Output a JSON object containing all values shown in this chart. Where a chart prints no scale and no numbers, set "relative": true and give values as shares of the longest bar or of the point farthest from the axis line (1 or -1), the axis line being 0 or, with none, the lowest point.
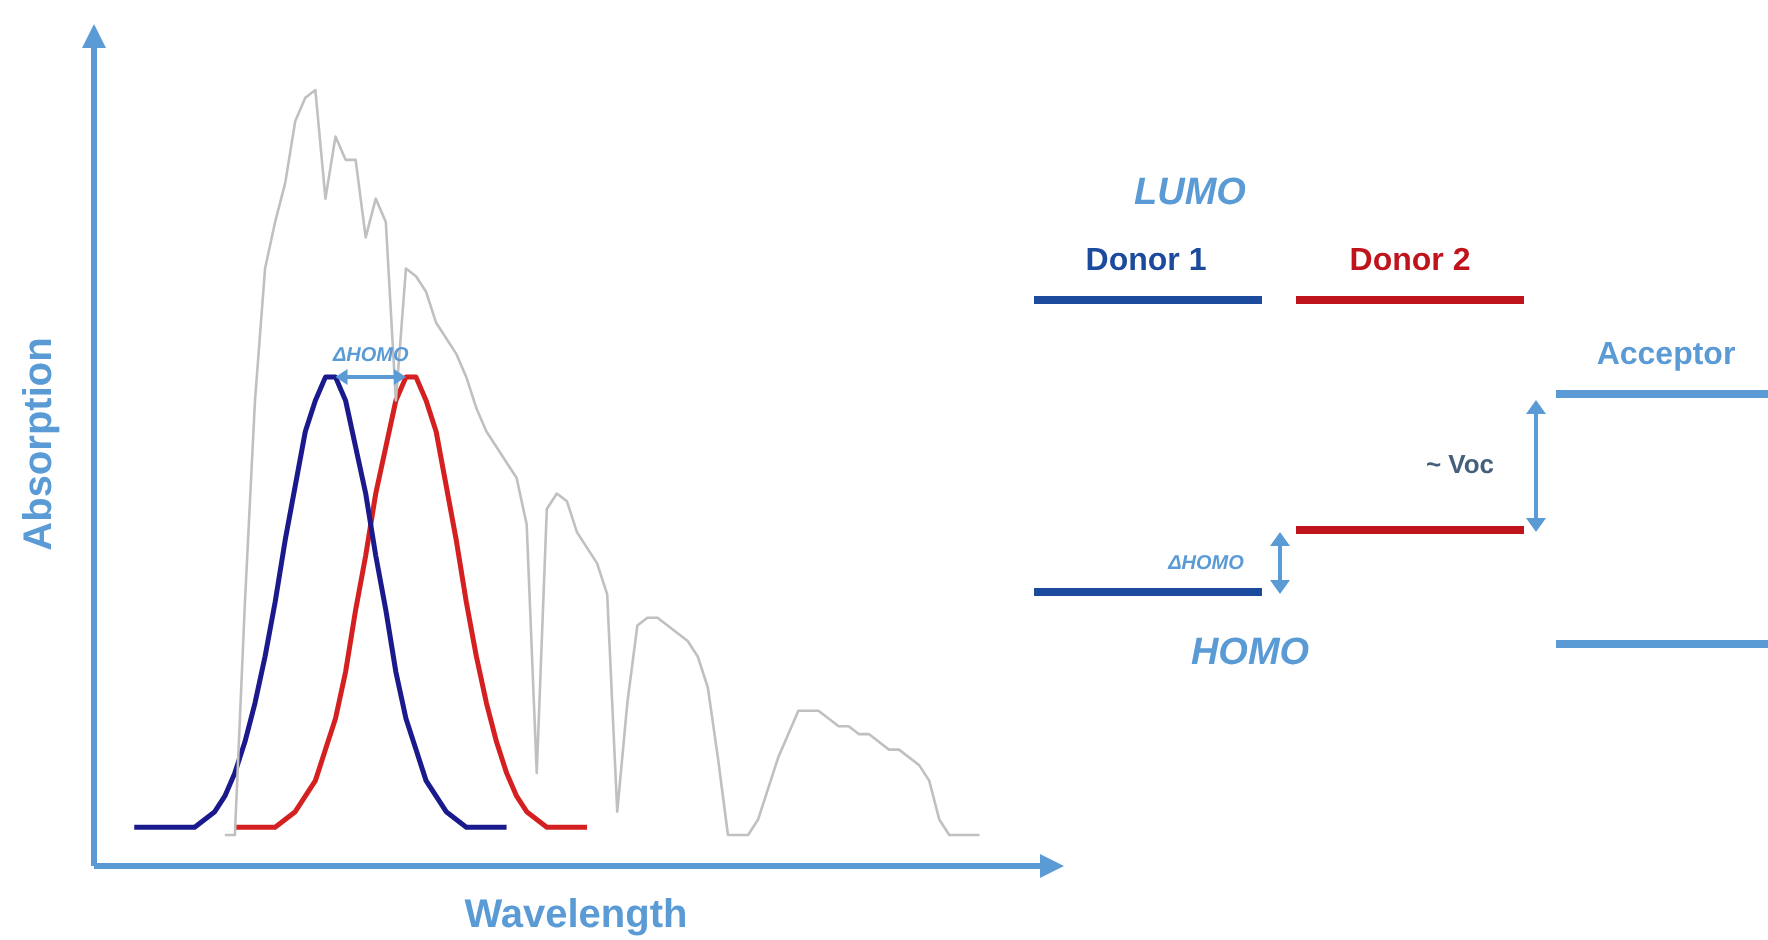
{
  "chart_data": [
    {
      "type": "line",
      "xlabel": "Wavelength",
      "ylabel": "Absorption",
      "relative": true,
      "annotations": [
        "ΔHOMO"
      ],
      "categories": [
        null,
        null,
        null,
        null,
        null,
        null,
        null,
        null,
        null,
        null,
        null,
        null,
        null,
        null,
        null,
        null,
        null,
        null,
        null,
        null,
        null,
        null,
        null,
        null,
        null,
        null,
        null,
        null,
        null,
        null,
        null,
        null,
        null,
        null,
        null,
        null,
        null,
        null,
        null,
        null,
        null,
        null,
        null,
        null,
        null,
        null,
        null,
        null,
        null,
        null,
        null,
        null,
        null,
        null,
        null,
        null,
        null,
        null,
        null,
        null,
        null,
        null,
        null,
        null,
        null,
        null,
        null,
        null,
        null,
        null,
        null,
        null,
        null,
        null,
        null,
        null,
        null,
        null,
        null,
        null,
        null,
        null,
        null,
        null,
        null,
        null,
        null,
        null,
        null,
        null,
        null,
        null,
        null,
        null,
        null,
        null,
        null
      ],
      "series": [
        {
          "color": "#c0c0c0",
          "values": [
            null,
            null,
            null,
            null,
            null,
            null,
            null,
            null,
            null,
            null,
            null,
            null,
            null,
            0.04,
            0.04,
            0.34,
            0.6,
            0.77,
            0.83,
            0.88,
            0.96,
            0.99,
            1,
            0.86,
            0.94,
            0.91,
            0.91,
            0.81,
            0.86,
            0.83,
            0.6,
            0.77,
            0.76,
            0.74,
            0.7,
            0.68,
            0.66,
            0.63,
            0.59,
            0.56,
            0.54,
            0.52,
            0.5,
            0.44,
            0.12,
            0.46,
            0.48,
            0.47,
            0.43,
            0.41,
            0.39,
            0.35,
            0.07,
            0.21,
            0.31,
            0.32,
            0.32,
            0.31,
            0.3,
            0.29,
            0.27,
            0.23,
            0.14,
            0.04,
            0.04,
            0.04,
            0.06,
            0.1,
            0.14,
            0.17,
            0.2,
            0.2,
            0.2,
            0.19,
            0.18,
            0.18,
            0.17,
            0.17,
            0.16,
            0.15,
            0.15,
            0.14,
            0.13,
            0.11,
            0.06,
            0.04,
            0.04,
            0.04,
            0.04,
            null,
            null,
            null,
            null,
            null,
            null,
            null,
            null
          ]
        },
        {
          "color": "#1a1a8c",
          "values": [
            null,
            null,
            null,
            null,
            0.05,
            0.05,
            0.05,
            0.05,
            0.05,
            0.05,
            0.05,
            0.06,
            0.07,
            0.09,
            0.12,
            0.16,
            0.21,
            0.27,
            0.34,
            0.42,
            0.49,
            0.56,
            0.6,
            0.63,
            0.63,
            0.6,
            0.54,
            0.48,
            0.4,
            0.33,
            0.25,
            0.19,
            0.15,
            0.11,
            0.09,
            0.07,
            0.06,
            0.05,
            0.05,
            0.05,
            0.05,
            0.05,
            null,
            null,
            null,
            null,
            null,
            null,
            null,
            null,
            null,
            null,
            null,
            null,
            null,
            null,
            null,
            null,
            null,
            null,
            null,
            null,
            null,
            null,
            null,
            null,
            null,
            null,
            null,
            null,
            null,
            null,
            null,
            null,
            null,
            null,
            null,
            null,
            null,
            null,
            null,
            null,
            null,
            null,
            null,
            null,
            null,
            null,
            null,
            null,
            null,
            null,
            null,
            null,
            null,
            null,
            null
          ]
        },
        {
          "color": "#d42020",
          "values": [
            null,
            null,
            null,
            null,
            null,
            null,
            null,
            null,
            null,
            null,
            null,
            null,
            null,
            null,
            0.05,
            0.05,
            0.05,
            0.05,
            0.05,
            0.06,
            0.07,
            0.09,
            0.11,
            0.15,
            0.19,
            0.25,
            0.33,
            0.4,
            0.48,
            0.54,
            0.6,
            0.63,
            0.63,
            0.6,
            0.56,
            0.49,
            0.42,
            0.34,
            0.27,
            0.21,
            0.16,
            0.12,
            0.09,
            0.07,
            0.06,
            0.05,
            0.05,
            0.05,
            0.05,
            0.05,
            null,
            null,
            null,
            null,
            null,
            null,
            null,
            null,
            null,
            null,
            null,
            null,
            null,
            null,
            null,
            null,
            null,
            null,
            null,
            null,
            null,
            null,
            null,
            null,
            null,
            null,
            null,
            null,
            null,
            null,
            null,
            null,
            null,
            null,
            null,
            null,
            null,
            null,
            null,
            null,
            null,
            null,
            null,
            null,
            null,
            null,
            null
          ]
        }
      ]
    },
    {
      "type": "other",
      "annotations": [
        "LUMO",
        "Donor 1",
        "Donor 2",
        "Acceptor",
        "~ Voc",
        "ΔHOMO",
        "HOMO"
      ]
    }
  ]
}
